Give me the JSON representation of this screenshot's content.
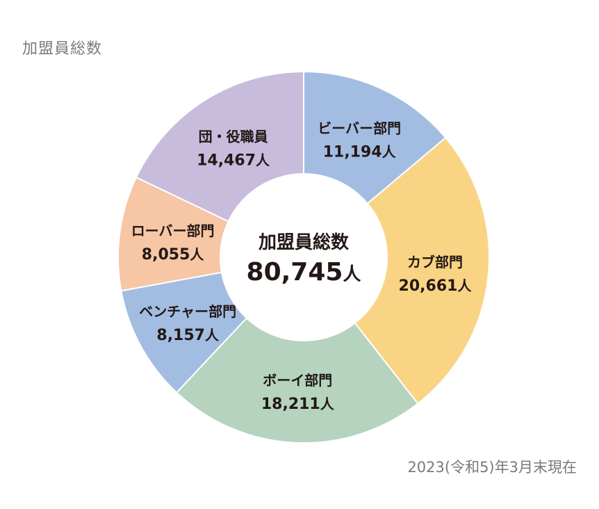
{
  "header": {
    "title": "加盟員総数"
  },
  "footnote": "2023(令和5)年3月末現在",
  "chart_data": {
    "type": "pie",
    "donut": true,
    "center_label": "加盟員総数",
    "total": 80745,
    "total_text": "80,745",
    "unit": "人",
    "slices": [
      {
        "name": "ビーバー部門",
        "value": 11194,
        "value_text": "11,194",
        "color": "#a3bde2"
      },
      {
        "name": "カブ部門",
        "value": 20661,
        "value_text": "20,661",
        "color": "#f9d484"
      },
      {
        "name": "ボーイ部門",
        "value": 18211,
        "value_text": "18,211",
        "color": "#b5d3bf"
      },
      {
        "name": "ベンチャー部門",
        "value": 8157,
        "value_text": "8,157",
        "color": "#a3bde2"
      },
      {
        "name": "ローバー部門",
        "value": 8055,
        "value_text": "8,055",
        "color": "#f6c6a5"
      },
      {
        "name": "団・役職員",
        "value": 14467,
        "value_text": "14,467",
        "color": "#c8bcdd"
      }
    ]
  }
}
